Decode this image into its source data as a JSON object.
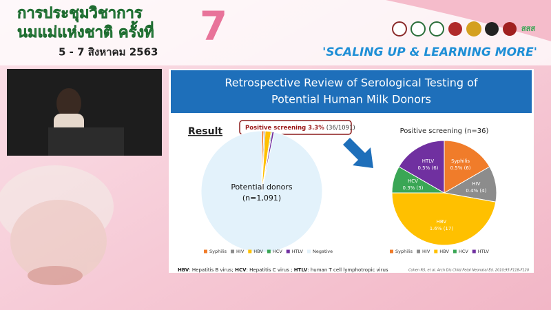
{
  "header": {
    "title_line1": "การประชุมวิชาการ",
    "title_line2": "นมแม่แห่งชาติ ครั้งที่",
    "edition": "7",
    "dates": "5 - 7 สิงหาคม 2563",
    "slogan": "'SCALING UP & LEARNING MORE'",
    "logo_text": "สสส"
  },
  "slide": {
    "title_lines": [
      "Retrospective Review of Serological Testing of",
      "Potential Human Milk Donors"
    ],
    "result_label": "Result",
    "callout": "Positive screening 3.3%",
    "callout_detail": "(36/1091)",
    "footnote": [
      {
        "abbr": "HBV",
        "text": ": Hepatitis B virus;"
      },
      {
        "abbr": "HCV",
        "text": ": Hepatitis C virus ;"
      },
      {
        "abbr": "HTLV",
        "text": ": human T cell lymphotropic virus"
      }
    ],
    "citation": "Cohen RS, et al. Arch Dis Child Fetal Neonatal Ed. 2010;95:F118-F120"
  },
  "charts": [
    {
      "type": "pie",
      "center_label": "Potential donors",
      "center_sub": "(n=1,091)",
      "categories": [
        "Syphilis",
        "HIV",
        "HBV",
        "HCV",
        "HTLV",
        "Negative"
      ],
      "values": [
        6,
        4,
        17,
        3,
        6,
        1055
      ],
      "colors": [
        "#f07c2a",
        "#8c8c8c",
        "#ffc000",
        "#3aa655",
        "#7030a0",
        "#e3f2fb"
      ]
    },
    {
      "type": "pie",
      "title": "Positive screening (n=36)",
      "categories": [
        "Syphilis",
        "HIV",
        "HBV",
        "HCV",
        "HTLV"
      ],
      "values": [
        6,
        4,
        17,
        3,
        6
      ],
      "value_labels": [
        "0.5% (6)",
        "0.4% (4)",
        "1.6% (17)",
        "0.3% (3)",
        "0.5% (6)"
      ],
      "colors": [
        "#f07c2a",
        "#8c8c8c",
        "#ffc000",
        "#3aa655",
        "#7030a0"
      ]
    }
  ]
}
